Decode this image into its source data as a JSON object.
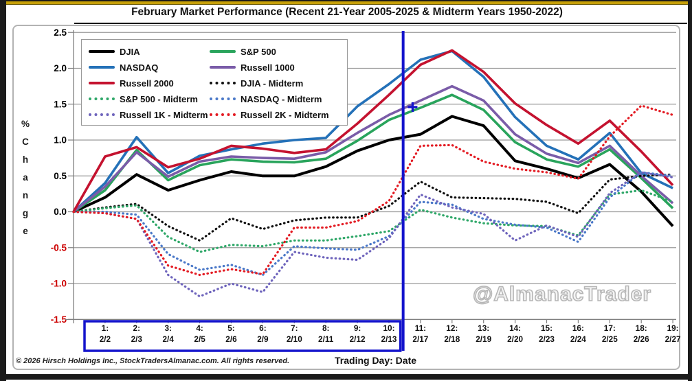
{
  "colors": {
    "grid": "#9a9a9a",
    "axis": "#7f7f7f",
    "annotation_blue": "#1414cc",
    "frame_gold": "#c7a008",
    "negative_tick": "#cc0000"
  },
  "watermark": "@AlmanacTrader",
  "footer": {
    "copyright": "© 2026 Hirsch Holdings Inc., StockTradersAlmanac.com. All rights reserved."
  },
  "chart_data": {
    "type": "line",
    "title": "February Market Performance (Recent 21-Year 2005-2025 & Midterm Years 1950-2022)",
    "ylim": [
      -1.5,
      2.5
    ],
    "grid": true,
    "legend_position": "top-left",
    "x_axis": {
      "title": "Trading Day: Date",
      "ticks": [
        {
          "day": "1:",
          "date": "2/2"
        },
        {
          "day": "2:",
          "date": "2/3"
        },
        {
          "day": "3:",
          "date": "2/4"
        },
        {
          "day": "4:",
          "date": "2/5"
        },
        {
          "day": "5:",
          "date": "2/6"
        },
        {
          "day": "6:",
          "date": "2/9"
        },
        {
          "day": "7:",
          "date": "2/10"
        },
        {
          "day": "8:",
          "date": "2/11"
        },
        {
          "day": "9:",
          "date": "2/12"
        },
        {
          "day": "10:",
          "date": "2/13"
        },
        {
          "day": "11:",
          "date": "2/17"
        },
        {
          "day": "12:",
          "date": "2/18"
        },
        {
          "day": "13:",
          "date": "2/19"
        },
        {
          "day": "14:",
          "date": "2/20"
        },
        {
          "day": "15:",
          "date": "2/23"
        },
        {
          "day": "16:",
          "date": "2/24"
        },
        {
          "day": "17:",
          "date": "2/25"
        },
        {
          "day": "18:",
          "date": "2/26"
        },
        {
          "day": "19:",
          "date": "2/27"
        }
      ]
    },
    "y_axis": {
      "title": "% Change",
      "ticks": [
        2.5,
        2.0,
        1.5,
        1.0,
        0.5,
        0.0,
        -0.5,
        -1.0,
        -1.5
      ],
      "negative_color": "#cc0000"
    },
    "series": [
      {
        "name": "DJIA",
        "color": "#000000",
        "style": "solid",
        "values": [
          0,
          0.2,
          0.52,
          0.3,
          0.44,
          0.56,
          0.5,
          0.5,
          0.63,
          0.85,
          1.0,
          1.08,
          1.33,
          1.2,
          0.71,
          0.6,
          0.47,
          0.66,
          0.28,
          -0.2
        ]
      },
      {
        "name": "S&P 500",
        "color": "#29a45c",
        "style": "solid",
        "values": [
          0,
          0.3,
          0.86,
          0.44,
          0.65,
          0.73,
          0.7,
          0.69,
          0.74,
          0.99,
          1.28,
          1.45,
          1.63,
          1.42,
          0.97,
          0.73,
          0.63,
          0.87,
          0.47,
          0.05
        ]
      },
      {
        "name": "NASDAQ",
        "color": "#2471b8",
        "style": "solid",
        "values": [
          0,
          0.4,
          1.04,
          0.54,
          0.78,
          0.87,
          0.95,
          1.0,
          1.03,
          1.47,
          1.78,
          2.12,
          2.24,
          1.88,
          1.32,
          0.92,
          0.73,
          1.1,
          0.54,
          0.33
        ]
      },
      {
        "name": "Russell 1000",
        "color": "#7a5ca8",
        "style": "solid",
        "values": [
          0,
          0.35,
          0.83,
          0.49,
          0.7,
          0.77,
          0.75,
          0.74,
          0.83,
          1.1,
          1.35,
          1.55,
          1.75,
          1.55,
          1.08,
          0.81,
          0.68,
          0.92,
          0.5,
          0.12
        ]
      },
      {
        "name": "Russell 2000",
        "color": "#c4122f",
        "style": "solid",
        "values": [
          0,
          0.77,
          0.9,
          0.62,
          0.74,
          0.92,
          0.88,
          0.82,
          0.87,
          1.23,
          1.63,
          2.05,
          2.25,
          1.95,
          1.51,
          1.21,
          0.95,
          1.27,
          0.84,
          0.37
        ]
      },
      {
        "name": "DJIA - Midterm",
        "color": "#111111",
        "style": "dotted",
        "values": [
          0,
          0.06,
          0.11,
          -0.2,
          -0.4,
          -0.09,
          -0.24,
          -0.12,
          -0.08,
          -0.08,
          0.08,
          0.42,
          0.2,
          0.19,
          0.18,
          0.14,
          -0.02,
          0.45,
          0.5,
          0.52
        ]
      },
      {
        "name": "S&P 500 - Midterm",
        "color": "#2ea768",
        "style": "dotted",
        "values": [
          0,
          0.05,
          0.09,
          -0.35,
          -0.56,
          -0.46,
          -0.48,
          -0.4,
          -0.4,
          -0.34,
          -0.27,
          0.03,
          -0.08,
          -0.16,
          -0.19,
          -0.2,
          -0.33,
          0.24,
          0.3,
          0.14
        ]
      },
      {
        "name": "NASDAQ - Midterm",
        "color": "#4a78c8",
        "style": "dotted",
        "values": [
          0,
          0.0,
          -0.04,
          -0.59,
          -0.81,
          -0.74,
          -0.88,
          -0.48,
          -0.51,
          -0.53,
          -0.34,
          0.14,
          0.1,
          -0.1,
          -0.18,
          -0.22,
          -0.42,
          0.2,
          0.55,
          0.5
        ]
      },
      {
        "name": "Russell 1K - Midterm",
        "color": "#6e64bc",
        "style": "dotted",
        "values": [
          0,
          -0.02,
          -0.1,
          -0.88,
          -1.18,
          -1.0,
          -1.12,
          -0.56,
          -0.64,
          -0.67,
          -0.37,
          0.24,
          0.06,
          -0.03,
          -0.4,
          -0.19,
          -0.35,
          0.26,
          0.55,
          0.48
        ]
      },
      {
        "name": "Russell 2K - Midterm",
        "color": "#e31b23",
        "style": "dotted",
        "values": [
          0,
          -0.02,
          -0.1,
          -0.75,
          -0.88,
          -0.8,
          -0.87,
          -0.22,
          -0.22,
          -0.13,
          0.15,
          0.92,
          0.93,
          0.7,
          0.6,
          0.55,
          0.46,
          1.05,
          1.48,
          1.35
        ]
      }
    ],
    "legend_order": [
      [
        "DJIA",
        "S&P 500"
      ],
      [
        "NASDAQ",
        "Russell 1000"
      ],
      [
        "Russell 2000",
        "DJIA - Midterm"
      ],
      [
        "S&P 500 - Midterm",
        "NASDAQ - Midterm"
      ],
      [
        "Russell 1K - Midterm",
        "Russell 2K - Midterm"
      ]
    ],
    "annotations": {
      "highlight_box_days": [
        1,
        10
      ],
      "vline_after_day": 10.45,
      "cursor_cross": {
        "day": 10.75,
        "value": 1.46
      }
    }
  }
}
